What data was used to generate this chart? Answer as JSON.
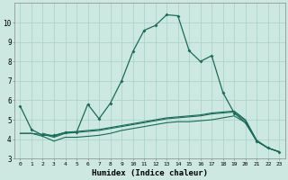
{
  "xlabel": "Humidex (Indice chaleur)",
  "background_color": "#cce8e0",
  "grid_color": "#aed4ca",
  "line_color": "#1a6b5a",
  "xlim": [
    -0.5,
    23.5
  ],
  "ylim": [
    3,
    11
  ],
  "yticks": [
    3,
    4,
    5,
    6,
    7,
    8,
    9,
    10
  ],
  "xticks": [
    0,
    1,
    2,
    3,
    4,
    5,
    6,
    7,
    8,
    9,
    10,
    11,
    12,
    13,
    14,
    15,
    16,
    17,
    18,
    19,
    20,
    21,
    22,
    23
  ],
  "line1_x": [
    0,
    1,
    2,
    3,
    4,
    5,
    6,
    7,
    8,
    9,
    10,
    11,
    12,
    13,
    14,
    15,
    16,
    17,
    18,
    19,
    20,
    21,
    22,
    23
  ],
  "line1_y": [
    5.7,
    4.5,
    4.2,
    4.2,
    4.35,
    4.35,
    5.8,
    5.05,
    5.85,
    7.0,
    8.5,
    9.6,
    9.85,
    10.4,
    10.35,
    8.55,
    8.0,
    8.3,
    6.4,
    5.35,
    4.85,
    3.9,
    3.55,
    3.35
  ],
  "line2_x": [
    0,
    1,
    2,
    3,
    4,
    5,
    6,
    7,
    8,
    9,
    10,
    11,
    12,
    13,
    14,
    15,
    16,
    17,
    18,
    19,
    20,
    21,
    22,
    23
  ],
  "line2_y": [
    4.3,
    4.3,
    4.15,
    3.9,
    4.1,
    4.1,
    4.15,
    4.2,
    4.3,
    4.45,
    4.55,
    4.65,
    4.75,
    4.85,
    4.9,
    4.9,
    4.95,
    5.0,
    5.1,
    5.2,
    4.85,
    3.9,
    3.55,
    3.35
  ],
  "line3_x": [
    0,
    1,
    2,
    3,
    4,
    5,
    6,
    7,
    8,
    9,
    10,
    11,
    12,
    13,
    14,
    15,
    16,
    17,
    18,
    19,
    20,
    21,
    22,
    23
  ],
  "line3_y": [
    4.3,
    4.3,
    4.25,
    4.1,
    4.3,
    4.35,
    4.4,
    4.45,
    4.55,
    4.65,
    4.75,
    4.85,
    4.95,
    5.05,
    5.1,
    5.15,
    5.2,
    5.3,
    5.35,
    5.4,
    4.95,
    3.9,
    3.55,
    3.35
  ],
  "line4_x": [
    2,
    3,
    4,
    5,
    6,
    7,
    8,
    9,
    10,
    11,
    12,
    13,
    14,
    15,
    16,
    17,
    18,
    19,
    20,
    21,
    22,
    23
  ],
  "line4_y": [
    4.3,
    4.15,
    4.35,
    4.4,
    4.45,
    4.5,
    4.6,
    4.7,
    4.8,
    4.9,
    5.0,
    5.1,
    5.15,
    5.2,
    5.25,
    5.35,
    5.4,
    5.45,
    5.0,
    3.95,
    3.55,
    3.35
  ]
}
